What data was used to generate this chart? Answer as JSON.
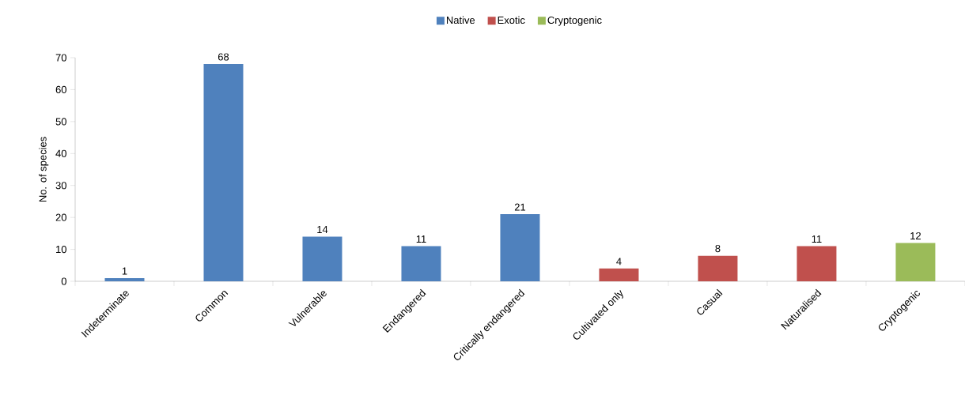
{
  "chart_data": {
    "type": "bar",
    "ylabel": "No. of species",
    "categories": [
      "Indeterminate",
      "Common",
      "Vulnerable",
      "Endangered",
      "Critically endangered",
      "Cultivated only",
      "Casual",
      "Naturalised",
      "Cryptogenic"
    ],
    "series": [
      {
        "name": "Native",
        "color": "#4f81bd",
        "values": [
          1,
          68,
          14,
          11,
          21,
          null,
          null,
          null,
          null
        ]
      },
      {
        "name": "Exotic",
        "color": "#c0504d",
        "values": [
          null,
          null,
          null,
          null,
          null,
          4,
          8,
          11,
          null
        ]
      },
      {
        "name": "Cryptogenic",
        "color": "#9bbb59",
        "values": [
          null,
          null,
          null,
          null,
          null,
          null,
          null,
          null,
          12
        ]
      }
    ],
    "ylim": [
      0,
      70
    ],
    "yticks": [
      0,
      10,
      20,
      30,
      40,
      50,
      60,
      70
    ],
    "grid": false,
    "legend": "top",
    "data_labels": true
  }
}
